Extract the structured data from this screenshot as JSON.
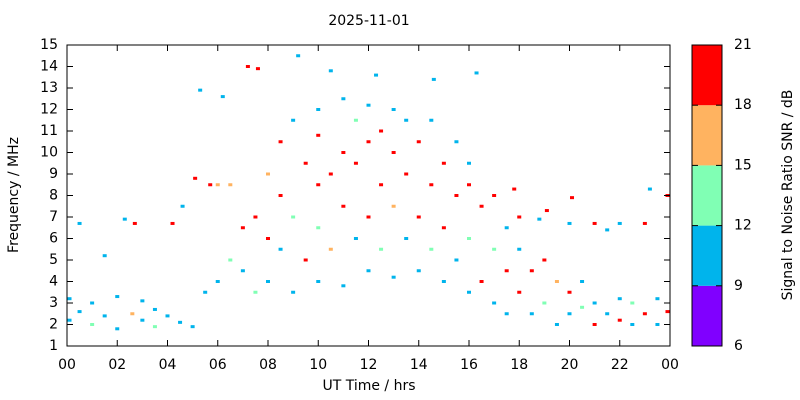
{
  "chart_data": {
    "type": "scatter",
    "title": "2025-11-01",
    "x_label": "UT Time / hrs",
    "y_label": "Frequency / MHz",
    "xlim": [
      0,
      24
    ],
    "xticks": [
      {
        "value": 0,
        "label": "00"
      },
      {
        "value": 2,
        "label": "02"
      },
      {
        "value": 4,
        "label": "04"
      },
      {
        "value": 6,
        "label": "06"
      },
      {
        "value": 8,
        "label": "08"
      },
      10,
      12,
      14,
      16,
      18,
      20,
      22,
      {
        "value": 24,
        "label": "00"
      }
    ],
    "ylim": [
      1,
      15
    ],
    "yticks": [
      1,
      2,
      3,
      4,
      5,
      6,
      7,
      8,
      9,
      10,
      11,
      12,
      13,
      14,
      15
    ],
    "colorbar": {
      "label": "Signal to Noise Ratio SNR / dB",
      "lim": [
        6,
        21
      ],
      "ticks": [
        6,
        9,
        12,
        15,
        18,
        21
      ],
      "colors": [
        "#8000ff",
        "#00b4ec",
        "#80ffb4",
        "#ffb360",
        "#ff0000"
      ]
    },
    "x": [
      0.1,
      0.1,
      0.5,
      0.5,
      1,
      1,
      1.5,
      1.5,
      2,
      2,
      2.3,
      2.6,
      2.7,
      3,
      3,
      3.5,
      3.5,
      4,
      4.2,
      4.5,
      4.6,
      5,
      5.1,
      5.3,
      5.5,
      5.7,
      6,
      6,
      6.2,
      6.5,
      6.5,
      7,
      7,
      7.2,
      7.5,
      7.5,
      7.6,
      8,
      8,
      8,
      8.5,
      8.5,
      8.5,
      9,
      9,
      9,
      9.2,
      9.5,
      9.5,
      10,
      10,
      10,
      10,
      10,
      10.5,
      10.5,
      10.5,
      11,
      11,
      11,
      11,
      11.5,
      11.5,
      11.5,
      12,
      12,
      12,
      12,
      12.3,
      12.5,
      12.5,
      12.5,
      13,
      13,
      13,
      13,
      13.5,
      13.5,
      13.5,
      14,
      14,
      14,
      14.5,
      14.5,
      14.5,
      14.6,
      15,
      15,
      15,
      15.5,
      15.5,
      15.5,
      16,
      16,
      16,
      16,
      16.3,
      16.5,
      16.5,
      17,
      17,
      17,
      17.5,
      17.5,
      17.5,
      17.8,
      18,
      18,
      18,
      18.5,
      18.5,
      18.8,
      19,
      19,
      19.1,
      19.5,
      19.5,
      20,
      20,
      20,
      20.1,
      20.5,
      20.5,
      21,
      21,
      21,
      21.5,
      21.5,
      22,
      22,
      22,
      22.5,
      22.5,
      23,
      23,
      23.2,
      23.5,
      23.5,
      23.9,
      23.9
    ],
    "y": [
      2.2,
      3.2,
      2.6,
      6.7,
      2.0,
      3.0,
      2.4,
      5.2,
      1.8,
      3.3,
      6.9,
      2.5,
      6.7,
      2.2,
      3.1,
      2.7,
      1.9,
      2.4,
      6.7,
      2.1,
      7.5,
      1.9,
      8.8,
      12.9,
      3.5,
      8.5,
      4.0,
      8.5,
      12.6,
      5.0,
      8.5,
      4.5,
      6.5,
      14.0,
      3.5,
      7.0,
      13.9,
      4.0,
      6.0,
      9.0,
      5.5,
      8.0,
      10.5,
      3.5,
      7.0,
      11.5,
      14.5,
      5.0,
      9.5,
      4.0,
      6.5,
      8.5,
      10.8,
      12.0,
      5.5,
      9.0,
      13.8,
      3.8,
      7.5,
      10.0,
      12.5,
      6.0,
      9.5,
      11.5,
      4.5,
      7.0,
      10.5,
      12.2,
      13.6,
      5.5,
      8.5,
      11.0,
      4.2,
      7.5,
      10.0,
      12.0,
      6.0,
      9.0,
      11.5,
      4.5,
      7.0,
      10.5,
      5.5,
      8.5,
      11.5,
      13.4,
      4.0,
      6.5,
      9.5,
      5.0,
      8.0,
      10.5,
      3.5,
      6.0,
      8.5,
      9.5,
      13.7,
      4.0,
      7.5,
      3.0,
      5.5,
      8.0,
      2.5,
      4.5,
      6.5,
      8.3,
      3.5,
      5.5,
      7.0,
      2.5,
      4.5,
      6.9,
      3.0,
      5.0,
      7.3,
      2.0,
      4.0,
      2.5,
      3.5,
      6.7,
      7.9,
      2.8,
      4.0,
      2.0,
      3.0,
      6.7,
      2.5,
      6.4,
      2.2,
      3.2,
      6.7,
      2.0,
      3.0,
      2.5,
      6.7,
      8.3,
      2.0,
      3.2,
      8.0,
      2.6
    ],
    "snr": [
      10,
      10,
      10,
      10,
      13,
      10,
      10,
      10,
      10,
      10,
      10,
      16,
      19,
      10,
      10,
      10,
      13,
      10,
      19,
      10,
      10,
      10,
      19,
      10,
      10,
      19,
      10,
      16,
      10,
      13,
      16,
      10,
      19,
      19,
      13,
      19,
      19,
      10,
      19,
      16,
      10,
      19,
      19,
      10,
      13,
      10,
      10,
      19,
      19,
      10,
      13,
      19,
      19,
      10,
      16,
      19,
      10,
      10,
      19,
      19,
      10,
      10,
      19,
      13,
      10,
      19,
      19,
      10,
      10,
      13,
      19,
      19,
      10,
      16,
      19,
      10,
      10,
      19,
      10,
      10,
      19,
      19,
      13,
      19,
      10,
      10,
      10,
      19,
      19,
      10,
      19,
      10,
      10,
      13,
      19,
      10,
      10,
      19,
      19,
      10,
      13,
      19,
      10,
      19,
      10,
      19,
      19,
      10,
      19,
      10,
      19,
      10,
      13,
      19,
      19,
      10,
      16,
      10,
      19,
      10,
      19,
      13,
      10,
      19,
      10,
      19,
      10,
      10,
      19,
      10,
      10,
      10,
      13,
      19,
      19,
      10,
      10,
      10,
      19,
      19
    ]
  }
}
